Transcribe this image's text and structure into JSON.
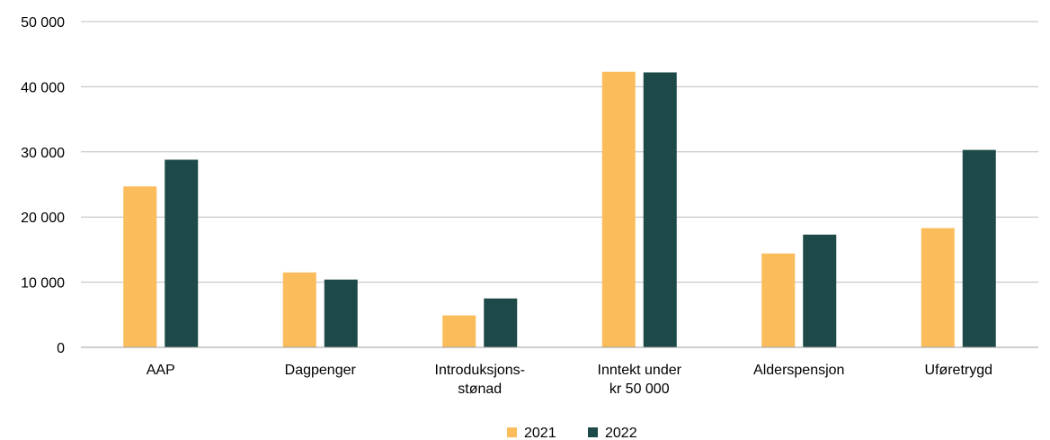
{
  "chart_data": {
    "type": "bar",
    "categories": [
      [
        "AAP"
      ],
      [
        "Dagpenger"
      ],
      [
        "Introduksjons-",
        "stønad"
      ],
      [
        "Inntekt under",
        "kr 50 000"
      ],
      [
        "Alderspensjon"
      ],
      [
        "Uføretrygd"
      ]
    ],
    "series": [
      {
        "name": "2021",
        "color": "#fbbc5b",
        "values": [
          24700,
          11500,
          4900,
          42300,
          14400,
          18300
        ]
      },
      {
        "name": "2022",
        "color": "#1d4a48",
        "values": [
          28800,
          10400,
          7500,
          42200,
          17300,
          30300
        ]
      }
    ],
    "yticks": [
      "0",
      "10 000",
      "20 000",
      "30 000",
      "40 000",
      "50 000"
    ],
    "ylim": [
      0,
      50000
    ],
    "grid": true,
    "legend_position": "bottom-center",
    "title": "",
    "xlabel": "",
    "ylabel": ""
  }
}
